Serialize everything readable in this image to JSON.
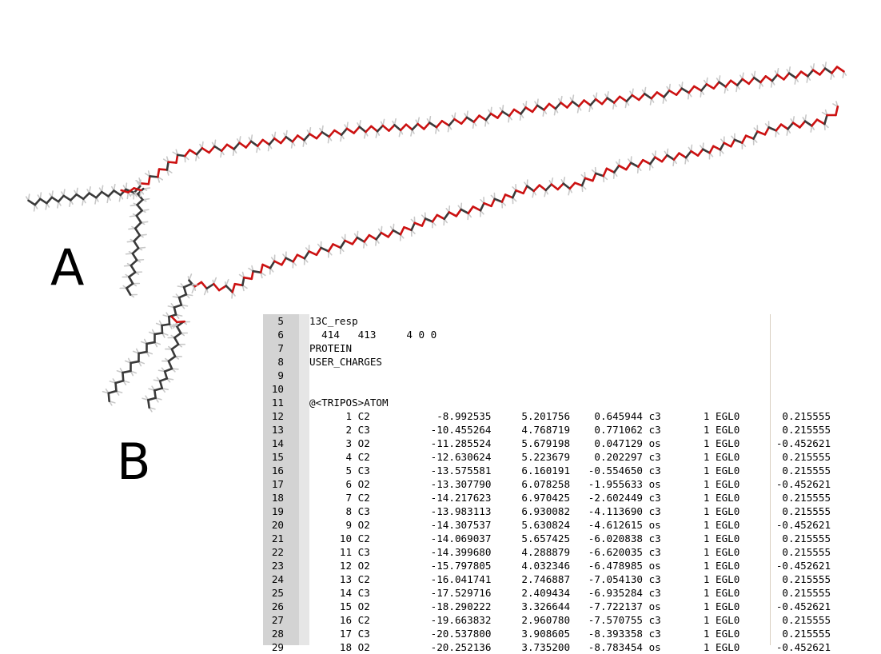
{
  "figure": {
    "labels": {
      "a": "A",
      "b": "B"
    },
    "molecule_colors": {
      "carbon": "#3a3a3a",
      "hydrogen": "#c8c8c8",
      "oxygen": "#cc1111"
    }
  },
  "editor": {
    "lines": [
      {
        "num": "5",
        "text": "13C_resp"
      },
      {
        "num": "6",
        "text": "  414   413     4 0 0"
      },
      {
        "num": "7",
        "text": "PROTEIN"
      },
      {
        "num": "8",
        "text": "USER_CHARGES"
      },
      {
        "num": "9",
        "text": ""
      },
      {
        "num": "10",
        "text": ""
      },
      {
        "num": "11",
        "text": "@<TRIPOS>ATOM"
      },
      {
        "num": "12",
        "text": "      1 C2           -8.992535     5.201756    0.645944 c3       1 EGL0       0.215555"
      },
      {
        "num": "13",
        "text": "      2 C3          -10.455264     4.768719    0.771062 c3       1 EGL0       0.215555"
      },
      {
        "num": "14",
        "text": "      3 O2          -11.285524     5.679198    0.047129 os       1 EGL0      -0.452621"
      },
      {
        "num": "15",
        "text": "      4 C2          -12.630624     5.223679    0.202297 c3       1 EGL0       0.215555"
      },
      {
        "num": "16",
        "text": "      5 C3          -13.575581     6.160191   -0.554650 c3       1 EGL0       0.215555"
      },
      {
        "num": "17",
        "text": "      6 O2          -13.307790     6.078258   -1.955633 os       1 EGL0      -0.452621"
      },
      {
        "num": "18",
        "text": "      7 C2          -14.217623     6.970425   -2.602449 c3       1 EGL0       0.215555"
      },
      {
        "num": "19",
        "text": "      8 C3          -13.983113     6.930082   -4.113690 c3       1 EGL0       0.215555"
      },
      {
        "num": "20",
        "text": "      9 O2          -14.307537     5.630824   -4.612615 os       1 EGL0      -0.452621"
      },
      {
        "num": "21",
        "text": "     10 C2          -14.069037     5.657425   -6.020838 c3       1 EGL0       0.215555"
      },
      {
        "num": "22",
        "text": "     11 C3          -14.399680     4.288879   -6.620035 c3       1 EGL0       0.215555"
      },
      {
        "num": "23",
        "text": "     12 O2          -15.797805     4.032346   -6.478985 os       1 EGL0      -0.452621"
      },
      {
        "num": "24",
        "text": "     13 C2          -16.041741     2.746887   -7.054130 c3       1 EGL0       0.215555"
      },
      {
        "num": "25",
        "text": "     14 C3          -17.529716     2.409434   -6.935284 c3       1 EGL0       0.215555"
      },
      {
        "num": "26",
        "text": "     15 O2          -18.290222     3.326644   -7.722137 os       1 EGL0      -0.452621"
      },
      {
        "num": "27",
        "text": "     16 C2          -19.663832     2.960780   -7.570755 c3       1 EGL0       0.215555"
      },
      {
        "num": "28",
        "text": "     17 C3          -20.537800     3.908605   -8.393358 c3       1 EGL0       0.215555"
      },
      {
        "num": "29",
        "text": "     18 O2          -20.252136     3.735200   -8.783454 os       1 EGL0      -0.452621"
      }
    ]
  }
}
